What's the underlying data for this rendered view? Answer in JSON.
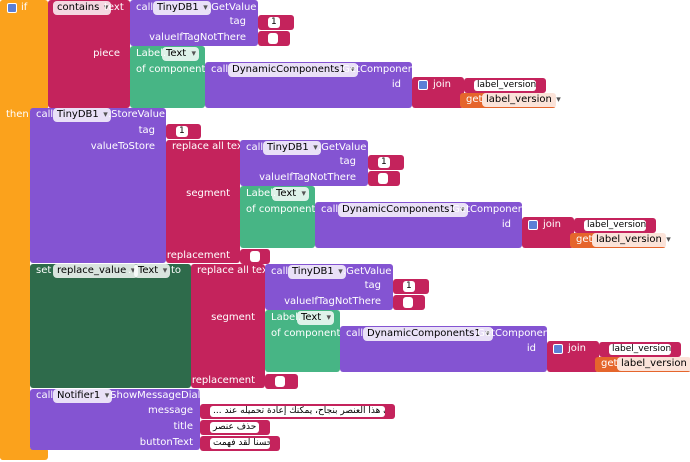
{
  "condition": {
    "keyword": "if",
    "op": "contains",
    "text_label": "text",
    "piece_label": "piece",
    "get_value": {
      "call": "call",
      "component": "TinyDB1",
      "method": ".GetValue",
      "tag_label": "tag",
      "tag": "1",
      "default_label": "valueIfTagNotThere"
    },
    "component": {
      "label": "Label.",
      "property": "Text",
      "of_component": "of component",
      "call": "call",
      "component": "DynamicComponents1",
      "method": ".GetComponent",
      "id_label": "id",
      "join": "join",
      "text": "label_version",
      "get": "get",
      "variable": "label_version"
    }
  },
  "then": {
    "keyword": "then",
    "store": {
      "call": "call",
      "component": "TinyDB1",
      "method": ".StoreValue",
      "tag_label": "tag",
      "tag": "1",
      "value_label": "valueToStore",
      "replace": {
        "label": "replace all text",
        "segment_label": "segment",
        "replacement_label": "replacement",
        "get_value": {
          "call": "call",
          "component": "TinyDB1",
          "method": ".GetValue",
          "tag_label": "tag",
          "tag": "1",
          "default_label": "valueIfTagNotThere"
        },
        "component": {
          "label": "Label.",
          "property": "Text",
          "of_component": "of component",
          "call": "call",
          "component": "DynamicComponents1",
          "method": ".GetComponent",
          "id_label": "id",
          "join": "join",
          "text": "label_version",
          "get": "get",
          "variable": "label_version"
        }
      }
    },
    "set": {
      "keyword": "set",
      "variable": "replace_value",
      "dot": ".",
      "property": "Text",
      "to": "to",
      "replace": {
        "label": "replace all text",
        "segment_label": "segment",
        "replacement_label": "replacement",
        "get_value": {
          "call": "call",
          "component": "TinyDB1",
          "method": ".GetValue",
          "tag_label": "tag",
          "tag": "1",
          "default_label": "valueIfTagNotThere"
        },
        "component": {
          "label": "Label.",
          "property": "Text",
          "of_component": "of component",
          "call": "call",
          "component": "DynamicComponents1",
          "method": ".GetComponent",
          "id_label": "id",
          "join": "join",
          "text": "label_version",
          "get": "get",
          "variable": "label_version"
        }
      }
    },
    "notify": {
      "call": "call",
      "component": "Notifier1",
      "method": ".ShowMessageDialog",
      "message_label": "message",
      "message": "... تم حذف هذا العنصر بنجاح، يمكنك إعادة تحميله عند",
      "title_label": "title",
      "title": "حذف عنصر",
      "button_label": "buttonText",
      "button": "حسناً لقد فهمت"
    }
  }
}
